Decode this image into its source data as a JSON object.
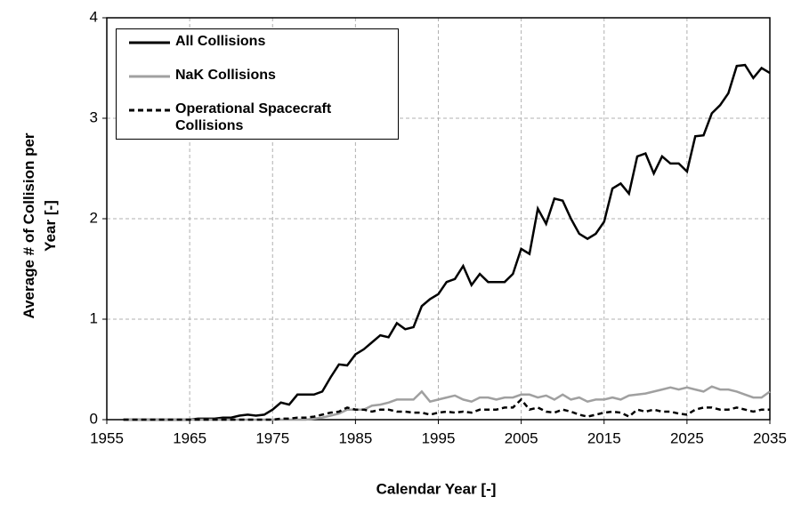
{
  "chart_data": {
    "type": "line",
    "xlabel": "Calendar Year [-]",
    "ylabel": "Average # of Collision per Year [-]",
    "x": [
      1957,
      1958,
      1959,
      1960,
      1961,
      1962,
      1963,
      1964,
      1965,
      1966,
      1967,
      1968,
      1969,
      1970,
      1971,
      1972,
      1973,
      1974,
      1975,
      1976,
      1977,
      1978,
      1979,
      1980,
      1981,
      1982,
      1983,
      1984,
      1985,
      1986,
      1987,
      1988,
      1989,
      1990,
      1991,
      1992,
      1993,
      1994,
      1995,
      1996,
      1997,
      1998,
      1999,
      2000,
      2001,
      2002,
      2003,
      2004,
      2005,
      2006,
      2007,
      2008,
      2009,
      2010,
      2011,
      2012,
      2013,
      2014,
      2015,
      2016,
      2017,
      2018,
      2019,
      2020,
      2021,
      2022,
      2023,
      2024,
      2025,
      2026,
      2027,
      2028,
      2029,
      2030,
      2031,
      2032,
      2033,
      2034,
      2035
    ],
    "series": [
      {
        "name": "All Collisions",
        "color": "#000000",
        "line_style": "solid",
        "values": [
          0,
          0,
          0,
          0,
          0,
          0,
          0,
          0,
          0,
          0.01,
          0.01,
          0.01,
          0.02,
          0.02,
          0.04,
          0.05,
          0.04,
          0.05,
          0.1,
          0.17,
          0.15,
          0.25,
          0.25,
          0.25,
          0.28,
          0.42,
          0.55,
          0.54,
          0.65,
          0.7,
          0.77,
          0.84,
          0.82,
          0.96,
          0.9,
          0.92,
          1.13,
          1.2,
          1.25,
          1.37,
          1.4,
          1.53,
          1.34,
          1.45,
          1.37,
          1.37,
          1.37,
          1.45,
          1.7,
          1.65,
          2.1,
          1.95,
          2.2,
          2.18,
          2.0,
          1.85,
          1.8,
          1.85,
          1.97,
          2.3,
          2.35,
          2.25,
          2.62,
          2.65,
          2.45,
          2.62,
          2.55,
          2.55,
          2.47,
          2.82,
          2.83,
          3.05,
          3.13,
          3.25,
          3.52,
          3.53,
          3.4,
          3.5,
          3.45
        ]
      },
      {
        "name": "NaK Collisions",
        "color": "#a0a0a0",
        "line_style": "solid",
        "values": [
          0,
          0,
          0,
          0,
          0,
          0,
          0,
          0,
          0,
          0,
          0,
          0,
          0,
          0,
          0,
          0,
          0,
          0,
          0,
          0,
          0,
          0,
          0,
          0.01,
          0.02,
          0.04,
          0.06,
          0.1,
          0.1,
          0.1,
          0.14,
          0.15,
          0.17,
          0.2,
          0.2,
          0.2,
          0.28,
          0.18,
          0.2,
          0.22,
          0.24,
          0.2,
          0.18,
          0.22,
          0.22,
          0.2,
          0.22,
          0.22,
          0.25,
          0.25,
          0.22,
          0.24,
          0.2,
          0.25,
          0.2,
          0.22,
          0.18,
          0.2,
          0.2,
          0.22,
          0.2,
          0.24,
          0.25,
          0.26,
          0.28,
          0.3,
          0.32,
          0.3,
          0.32,
          0.3,
          0.28,
          0.33,
          0.3,
          0.3,
          0.28,
          0.25,
          0.22,
          0.22,
          0.28
        ]
      },
      {
        "name": "Operational Spacecraft Collisions",
        "color": "#000000",
        "line_style": "dashed",
        "values": [
          0,
          0,
          0,
          0,
          0,
          0,
          0,
          0,
          0,
          0,
          0,
          0,
          0,
          0,
          0,
          0,
          0,
          0,
          0,
          0.01,
          0.01,
          0.02,
          0.02,
          0.03,
          0.05,
          0.07,
          0.08,
          0.12,
          0.1,
          0.1,
          0.08,
          0.1,
          0.1,
          0.08,
          0.08,
          0.07,
          0.07,
          0.05,
          0.07,
          0.08,
          0.07,
          0.08,
          0.07,
          0.1,
          0.1,
          0.1,
          0.12,
          0.12,
          0.2,
          0.1,
          0.12,
          0.08,
          0.07,
          0.1,
          0.08,
          0.05,
          0.03,
          0.05,
          0.07,
          0.08,
          0.07,
          0.03,
          0.1,
          0.08,
          0.1,
          0.08,
          0.08,
          0.06,
          0.05,
          0.1,
          0.12,
          0.12,
          0.1,
          0.1,
          0.12,
          0.1,
          0.08,
          0.1,
          0.1
        ]
      }
    ],
    "xlim": [
      1955,
      2035
    ],
    "xticks": [
      1955,
      1965,
      1975,
      1985,
      1995,
      2005,
      2015,
      2025,
      2035
    ],
    "ylim": [
      0,
      4
    ],
    "yticks": [
      0,
      1,
      2,
      3,
      4
    ],
    "grid": true
  }
}
